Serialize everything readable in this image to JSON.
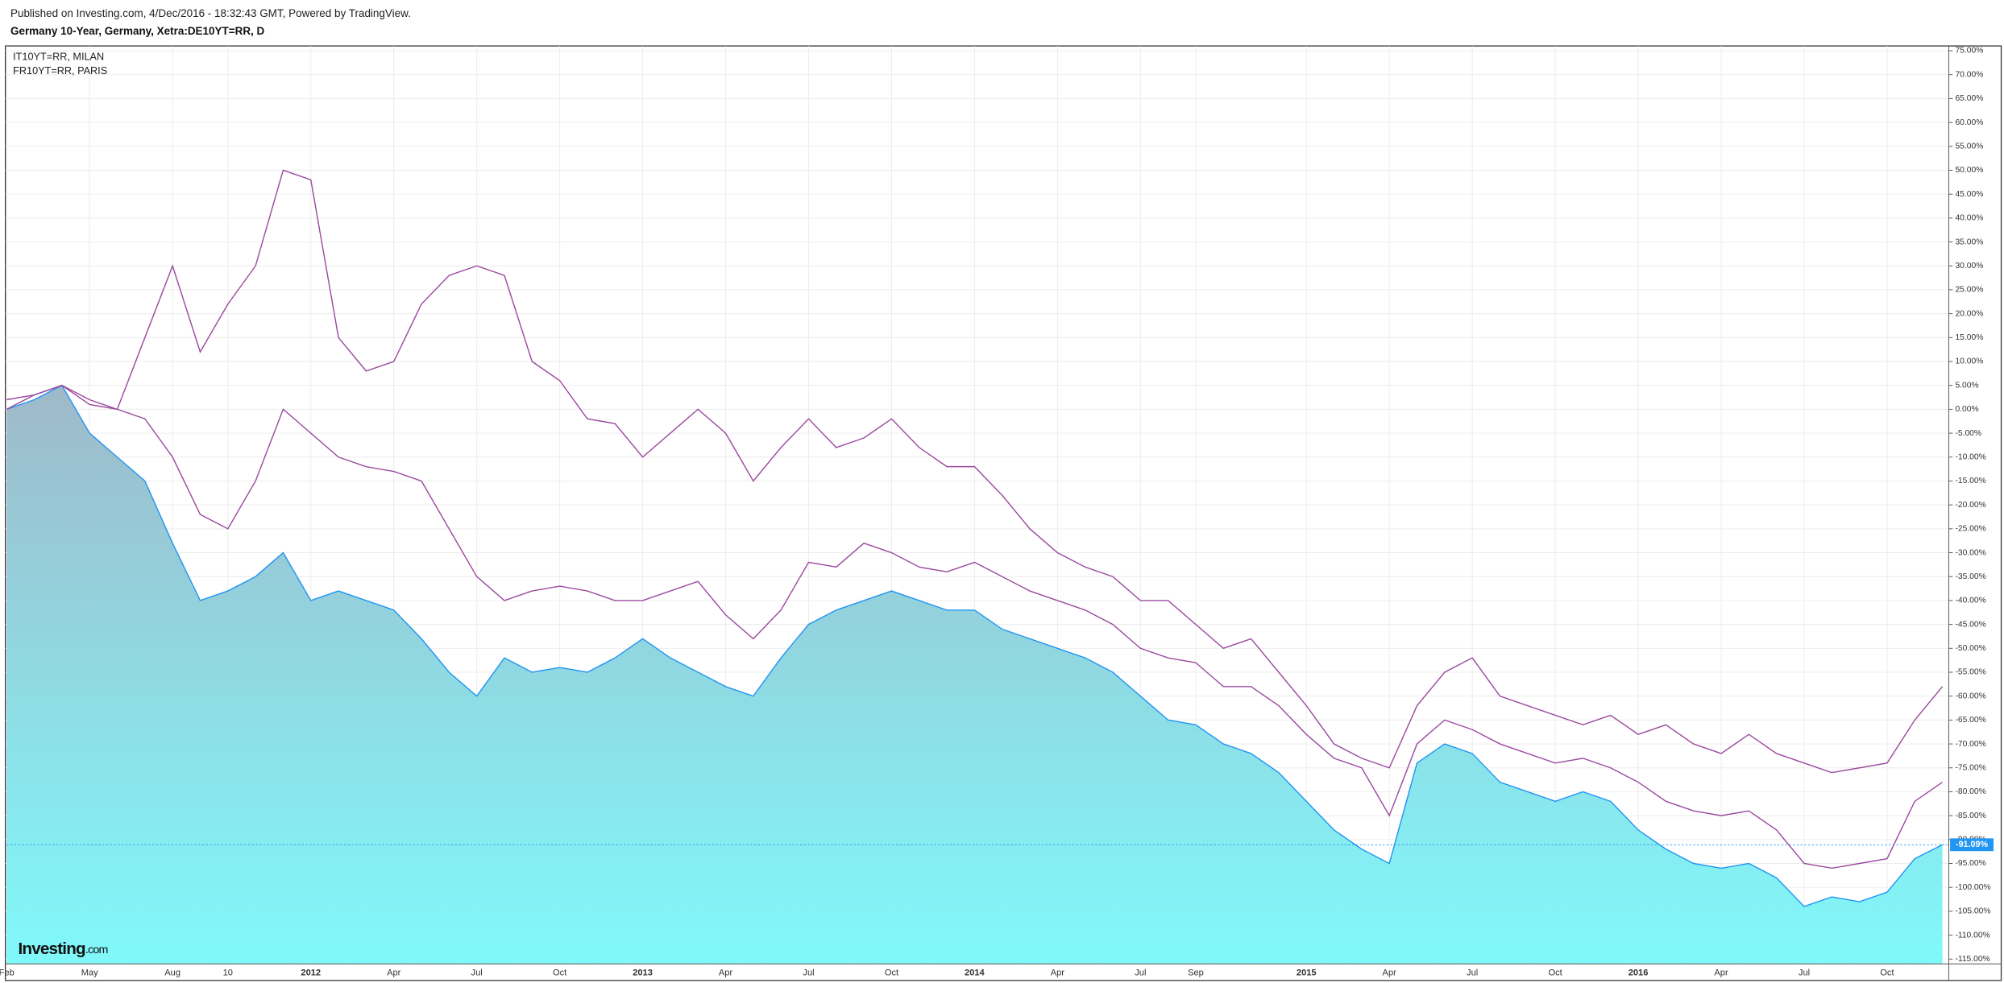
{
  "chart_data": {
    "type": "line",
    "published": "Published on Investing.com, 4/Dec/2016 - 18:32:43 GMT, Powered by TradingView.",
    "title": "Germany 10-Year, Germany, Xetra:DE10YT=RR, D",
    "logo": "Investing",
    "logo_suffix": ".com",
    "categories": [
      "Feb",
      null,
      null,
      "May",
      null,
      null,
      "Aug",
      null,
      "10",
      null,
      null,
      "2012",
      null,
      null,
      "Apr",
      null,
      null,
      "Jul",
      null,
      null,
      "Oct",
      null,
      null,
      "2013",
      null,
      null,
      "Apr",
      null,
      null,
      "Jul",
      null,
      null,
      "Oct",
      null,
      null,
      "2014",
      null,
      null,
      "Apr",
      null,
      null,
      "Jul",
      null,
      "Sep",
      null,
      null,
      null,
      "2015",
      null,
      null,
      "Apr",
      null,
      null,
      "Jul",
      null,
      null,
      "Oct",
      null,
      null,
      "2016",
      null,
      null,
      "Apr",
      null,
      null,
      "Jul",
      null,
      null,
      "Oct",
      null,
      null
    ],
    "series": [
      {
        "color": "#2196f3",
        "area": true,
        "last_value_label": "-91.09%",
        "values": [
          0,
          2,
          5,
          -5,
          -10,
          -15,
          -28,
          -40,
          -38,
          -35,
          -30,
          -40,
          -38,
          -40,
          -42,
          -48,
          -55,
          -60,
          -52,
          -55,
          -54,
          -55,
          -52,
          -48,
          -52,
          -55,
          -58,
          -60,
          -52,
          -45,
          -42,
          -40,
          -38,
          -40,
          -42,
          -42,
          -46,
          -48,
          -50,
          -52,
          -55,
          -60,
          -65,
          -66,
          -70,
          -72,
          -76,
          -82,
          -88,
          -92,
          -95,
          -74,
          -70,
          -72,
          -78,
          -80,
          -82,
          -80,
          -82,
          -88,
          -92,
          -95,
          -96,
          -95,
          -98,
          -104,
          -102,
          -103,
          -101,
          -94,
          -91.09
        ]
      },
      {
        "name": "IT10YT=RR, MILAN",
        "color": "#9b4b9f",
        "values": [
          0,
          3,
          5,
          2,
          0,
          15,
          30,
          12,
          22,
          30,
          50,
          48,
          15,
          8,
          10,
          22,
          28,
          30,
          28,
          10,
          6,
          -2,
          -3,
          -10,
          -5,
          0,
          -5,
          -15,
          -8,
          -2,
          -8,
          -6,
          -2,
          -8,
          -12,
          -12,
          -18,
          -25,
          -30,
          -33,
          -35,
          -40,
          -40,
          -45,
          -50,
          -48,
          -55,
          -62,
          -70,
          -73,
          -75,
          -62,
          -55,
          -52,
          -60,
          -62,
          -64,
          -66,
          -64,
          -68,
          -66,
          -70,
          -72,
          -68,
          -72,
          -74,
          -76,
          -75,
          -74,
          -65,
          -58
        ]
      },
      {
        "name": "FR10YT=RR, PARIS",
        "color": "#9b4b9f",
        "values": [
          2,
          3,
          5,
          1,
          0,
          -2,
          -10,
          -22,
          -25,
          -15,
          0,
          -5,
          -10,
          -12,
          -13,
          -15,
          -25,
          -35,
          -40,
          -38,
          -37,
          -38,
          -40,
          -40,
          -38,
          -36,
          -43,
          -48,
          -42,
          -32,
          -33,
          -28,
          -30,
          -33,
          -34,
          -32,
          -35,
          -38,
          -40,
          -42,
          -45,
          -50,
          -52,
          -53,
          -58,
          -58,
          -62,
          -68,
          -73,
          -75,
          -85,
          -70,
          -65,
          -67,
          -70,
          -72,
          -74,
          -73,
          -75,
          -78,
          -82,
          -84,
          -85,
          -84,
          -88,
          -95,
          -96,
          -95,
          -94,
          -82,
          -78
        ]
      }
    ],
    "ylim": [
      -116,
      76
    ],
    "yticks": [
      {
        "value": 75,
        "label": "75.00%"
      },
      {
        "value": 70,
        "label": "70.00%"
      },
      {
        "value": 65,
        "label": "65.00%"
      },
      {
        "value": 60,
        "label": "60.00%"
      },
      {
        "value": 55,
        "label": "55.00%"
      },
      {
        "value": 50,
        "label": "50.00%"
      },
      {
        "value": 45,
        "label": "45.00%"
      },
      {
        "value": 40,
        "label": "40.00%"
      },
      {
        "value": 35,
        "label": "35.00%"
      },
      {
        "value": 30,
        "label": "30.00%"
      },
      {
        "value": 25,
        "label": "25.00%"
      },
      {
        "value": 20,
        "label": "20.00%"
      },
      {
        "value": 15,
        "label": "15.00%"
      },
      {
        "value": 10,
        "label": "10.00%"
      },
      {
        "value": 5,
        "label": "5.00%"
      },
      {
        "value": 0,
        "label": "0.00%"
      },
      {
        "value": -5,
        "label": "-5.00%"
      },
      {
        "value": -10,
        "label": "-10.00%"
      },
      {
        "value": -15,
        "label": "-15.00%"
      },
      {
        "value": -20,
        "label": "-20.00%"
      },
      {
        "value": -25,
        "label": "-25.00%"
      },
      {
        "value": -30,
        "label": "-30.00%"
      },
      {
        "value": -35,
        "label": "-35.00%"
      },
      {
        "value": -40,
        "label": "-40.00%"
      },
      {
        "value": -45,
        "label": "-45.00%"
      },
      {
        "value": -50,
        "label": "-50.00%"
      },
      {
        "value": -55,
        "label": "-55.00%"
      },
      {
        "value": -60,
        "label": "-60.00%"
      },
      {
        "value": -65,
        "label": "-65.00%"
      },
      {
        "value": -70,
        "label": "-70.00%"
      },
      {
        "value": -75,
        "label": "-75.00%"
      },
      {
        "value": -80,
        "label": "-80.00%"
      },
      {
        "value": -85,
        "label": "-85.00%"
      },
      {
        "value": -90,
        "label": "-90.00%"
      },
      {
        "value": -95,
        "label": "-95.00%"
      },
      {
        "value": -100,
        "label": "-100.00%"
      },
      {
        "value": -105,
        "label": "-105.00%"
      },
      {
        "value": -110,
        "label": "-110.00%"
      },
      {
        "value": -115,
        "label": "-115.00%"
      }
    ],
    "grid": true
  }
}
